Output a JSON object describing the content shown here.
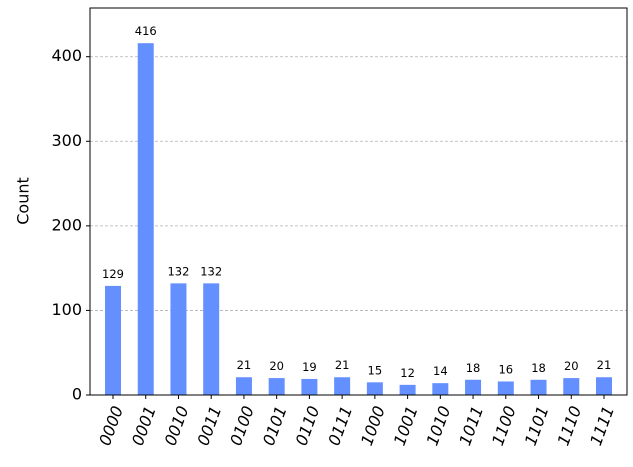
{
  "chart_data": {
    "type": "bar",
    "y_label": "Count",
    "categories": [
      "0000",
      "0001",
      "0010",
      "0011",
      "0100",
      "0101",
      "0110",
      "0111",
      "1000",
      "1001",
      "1010",
      "1011",
      "1100",
      "1101",
      "1110",
      "1111"
    ],
    "values": [
      129,
      416,
      132,
      132,
      21,
      20,
      19,
      21,
      15,
      12,
      14,
      18,
      16,
      18,
      20,
      21
    ],
    "color": "#648fff",
    "ylim": [
      0,
      457.6
    ],
    "yticks": [
      0,
      100,
      200,
      300,
      400
    ],
    "grid": true
  }
}
